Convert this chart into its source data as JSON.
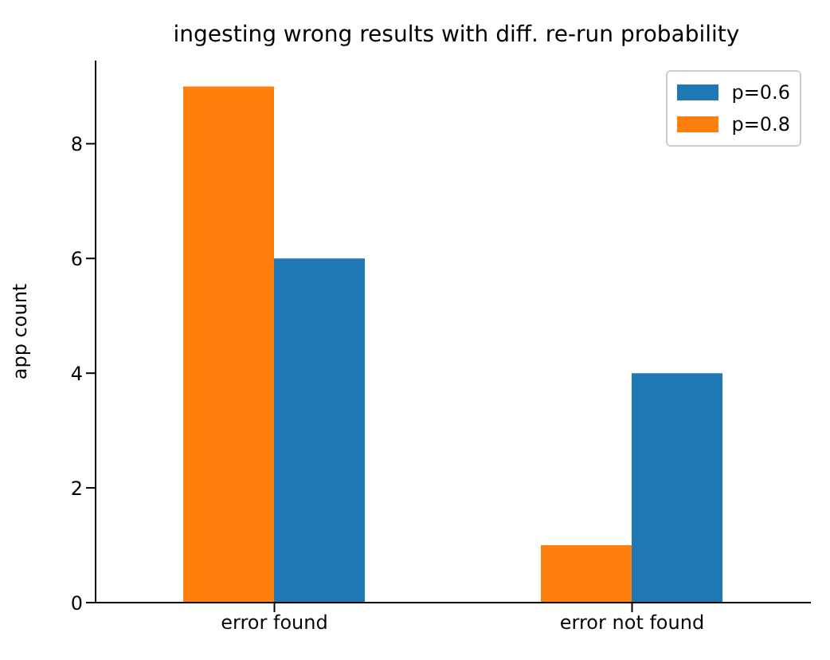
{
  "chart_data": {
    "type": "bar",
    "title": "ingesting wrong results with diff. re-run probability",
    "ylabel": "app count",
    "categories": [
      "error found",
      "error not found"
    ],
    "series": [
      {
        "name": "p=0.6",
        "color": "#1f77b4",
        "values": [
          6,
          4
        ]
      },
      {
        "name": "p=0.8",
        "color": "#ff7f0e",
        "values": [
          9,
          1
        ]
      }
    ],
    "ylim": [
      0,
      9.45
    ],
    "yticks": [
      0,
      2,
      4,
      6,
      8
    ],
    "legend": "top right"
  }
}
